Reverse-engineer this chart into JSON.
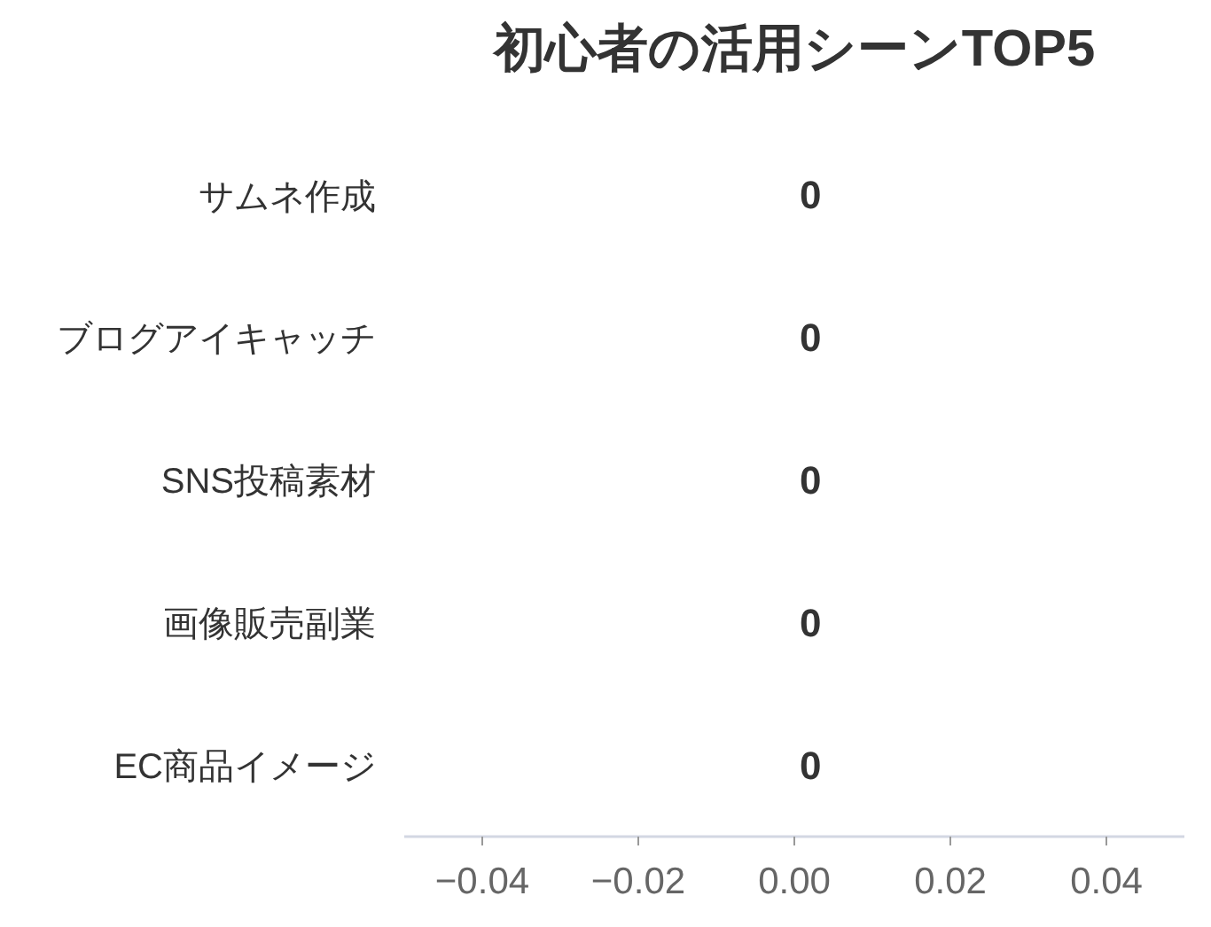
{
  "chart_data": {
    "type": "bar",
    "orientation": "horizontal",
    "title": "初心者の活用シーンTOP5",
    "categories": [
      "サムネ作成",
      "ブログアイキャッチ",
      "SNS投稿素材",
      "画像販売副業",
      "EC商品イメージ"
    ],
    "values": [
      0,
      0,
      0,
      0,
      0
    ],
    "data_labels": true,
    "xlim": [
      -0.05,
      0.05
    ],
    "xticks": [
      {
        "value": -0.04,
        "label": "−0.04"
      },
      {
        "value": -0.02,
        "label": "−0.02"
      },
      {
        "value": 0,
        "label": "0.00"
      },
      {
        "value": 0.02,
        "label": "0.02"
      },
      {
        "value": 0.04,
        "label": "0.04"
      }
    ]
  }
}
